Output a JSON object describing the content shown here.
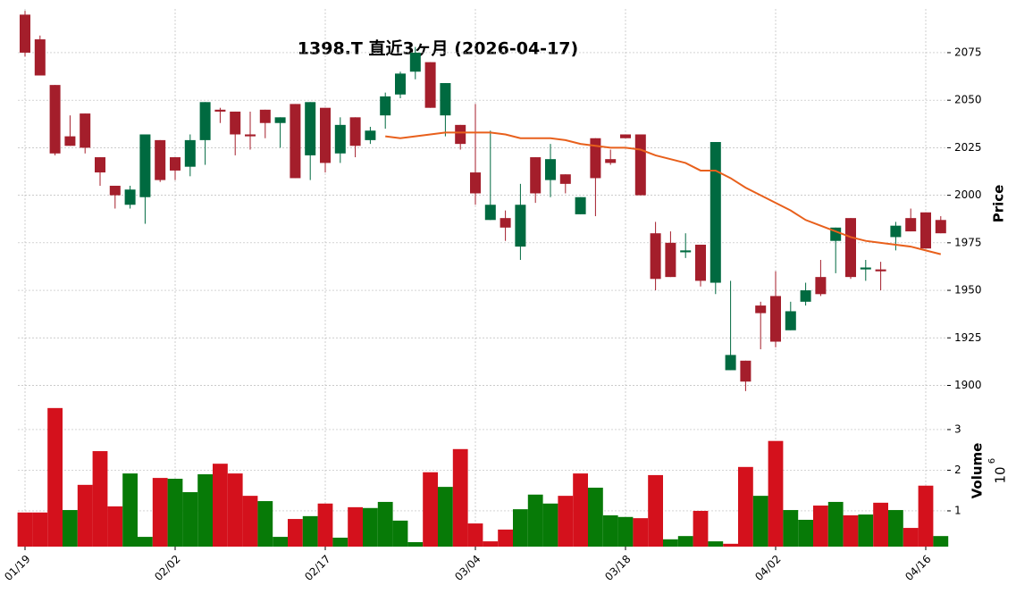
{
  "chart_data": {
    "type": "candlestick",
    "title": "1398.T  直近3ヶ月 (2026-04-17)",
    "y_axis_label": "Price",
    "volume_axis_label": "Volume",
    "volume_multiplier": {
      "base": "10",
      "exponent": "6"
    },
    "categories": [
      "01/19",
      null,
      null,
      null,
      null,
      null,
      null,
      null,
      null,
      null,
      "02/02",
      null,
      null,
      null,
      null,
      null,
      null,
      null,
      null,
      null,
      "02/17",
      null,
      null,
      null,
      null,
      null,
      null,
      null,
      null,
      null,
      "03/04",
      null,
      null,
      null,
      null,
      null,
      null,
      null,
      null,
      null,
      "03/18",
      null,
      null,
      null,
      null,
      null,
      null,
      null,
      null,
      null,
      "04/02",
      null,
      null,
      null,
      null,
      null,
      null,
      null,
      null,
      null,
      "04/16",
      null
    ],
    "open": [
      2095,
      2082,
      2058,
      2031,
      2043,
      2020,
      2005,
      1995,
      1999,
      2029,
      2020,
      2015,
      2029,
      2045,
      2044,
      2032,
      2045,
      2038,
      2048,
      2021,
      2046,
      2022,
      2041,
      2029,
      2042,
      2053,
      2065,
      2070,
      2042,
      2037,
      2012,
      1987,
      1988,
      1973,
      2020,
      2008,
      2011,
      1990,
      2030,
      2019,
      2032,
      2032,
      1980,
      1975,
      1970,
      1974,
      1954,
      1908,
      1913,
      1942,
      1947,
      1929,
      1944,
      1957,
      1976,
      1988,
      1961,
      1961,
      1978,
      1988,
      1991,
      1987
    ],
    "high": [
      2097,
      2084,
      2058,
      2042,
      2043,
      2020,
      2005,
      2005,
      2032,
      2029,
      2020,
      2032,
      2049,
      2046,
      2044,
      2044,
      2045,
      2041,
      2048,
      2049,
      2046,
      2041,
      2041,
      2036,
      2054,
      2065,
      2078,
      2070,
      2059,
      2037,
      2048,
      2034,
      1992,
      2006,
      2020,
      2027,
      2011,
      1999,
      2030,
      2024,
      2032,
      2032,
      1986,
      1981,
      1980,
      1974,
      2028,
      1955,
      1913,
      1944,
      1960,
      1944,
      1954,
      1966,
      1983,
      1988,
      1966,
      1965,
      1986,
      1993,
      1991,
      1989
    ],
    "low": [
      2073,
      2063,
      2021,
      2026,
      2022,
      2005,
      1993,
      1993,
      1985,
      2007,
      2008,
      2010,
      2016,
      2038,
      2021,
      2024,
      2030,
      2025,
      2009,
      2008,
      2012,
      2017,
      2020,
      2027,
      2035,
      2051,
      2061,
      2046,
      2031,
      2024,
      1995,
      1987,
      1976,
      1966,
      1996,
      1999,
      2001,
      1990,
      1989,
      2016,
      2030,
      2000,
      1950,
      1957,
      1967,
      1952,
      1948,
      1908,
      1897,
      1919,
      1920,
      1929,
      1942,
      1947,
      1959,
      1956,
      1955,
      1950,
      1971,
      1981,
      1972,
      1980
    ],
    "close": [
      2075,
      2063,
      2022,
      2026,
      2025,
      2012,
      2000,
      2003,
      2032,
      2008,
      2013,
      2029,
      2049,
      2044,
      2032,
      2031,
      2038,
      2041,
      2009,
      2049,
      2017,
      2037,
      2026,
      2034,
      2052,
      2064,
      2075,
      2046,
      2059,
      2027,
      2001,
      1995,
      1983,
      1995,
      2001,
      2019,
      2006,
      1999,
      2009,
      2017,
      2030,
      2000,
      1956,
      1957,
      1971,
      1955,
      2028,
      1916,
      1902,
      1938,
      1923,
      1939,
      1950,
      1948,
      1983,
      1957,
      1962,
      1960,
      1984,
      1981,
      1972,
      1980
    ],
    "moving_average": [
      null,
      null,
      null,
      null,
      null,
      null,
      null,
      null,
      null,
      null,
      null,
      null,
      null,
      null,
      null,
      null,
      null,
      null,
      null,
      null,
      null,
      null,
      null,
      null,
      2031,
      2030,
      2031,
      2032,
      2033,
      2033,
      2033,
      2033,
      2032,
      2030,
      2030,
      2030,
      2029,
      2027,
      2026,
      2025,
      2025,
      2024,
      2021,
      2019,
      2017,
      2013,
      2013,
      2009,
      2004,
      2000,
      1996,
      1992,
      1987,
      1984,
      1981,
      1978,
      1976,
      1975,
      1974,
      1973,
      1971,
      1969
    ],
    "volume": [
      0.96,
      0.96,
      3.53,
      1.02,
      1.64,
      2.47,
      1.11,
      1.92,
      0.36,
      1.81,
      1.79,
      1.46,
      1.9,
      2.16,
      1.92,
      1.37,
      1.24,
      0.36,
      0.8,
      0.87,
      1.18,
      0.34,
      1.09,
      1.07,
      1.22,
      0.76,
      0.23,
      1.95,
      1.59,
      2.52,
      0.69,
      0.25,
      0.54,
      1.04,
      1.4,
      1.18,
      1.37,
      1.92,
      1.57,
      0.89,
      0.85,
      0.82,
      1.88,
      0.3,
      0.38,
      1.0,
      0.25,
      0.19,
      2.08,
      1.37,
      2.72,
      1.02,
      0.78,
      1.13,
      1.22,
      0.89,
      0.91,
      1.2,
      1.02,
      0.58,
      1.62,
      0.38
    ],
    "ylim": [
      1896,
      2098
    ],
    "yticks": [
      1900,
      1925,
      1950,
      1975,
      2000,
      2025,
      2050,
      2075
    ],
    "volume_ylim": [
      0.12,
      3.9
    ],
    "volume_yticks": [
      1,
      2,
      3
    ],
    "up_color": "#006a40",
    "down_color": "#a41e2b",
    "volume_up_color": "#077a07",
    "volume_down_color": "#d4111c",
    "moving_average_color": "#e8601c",
    "grid": true
  }
}
